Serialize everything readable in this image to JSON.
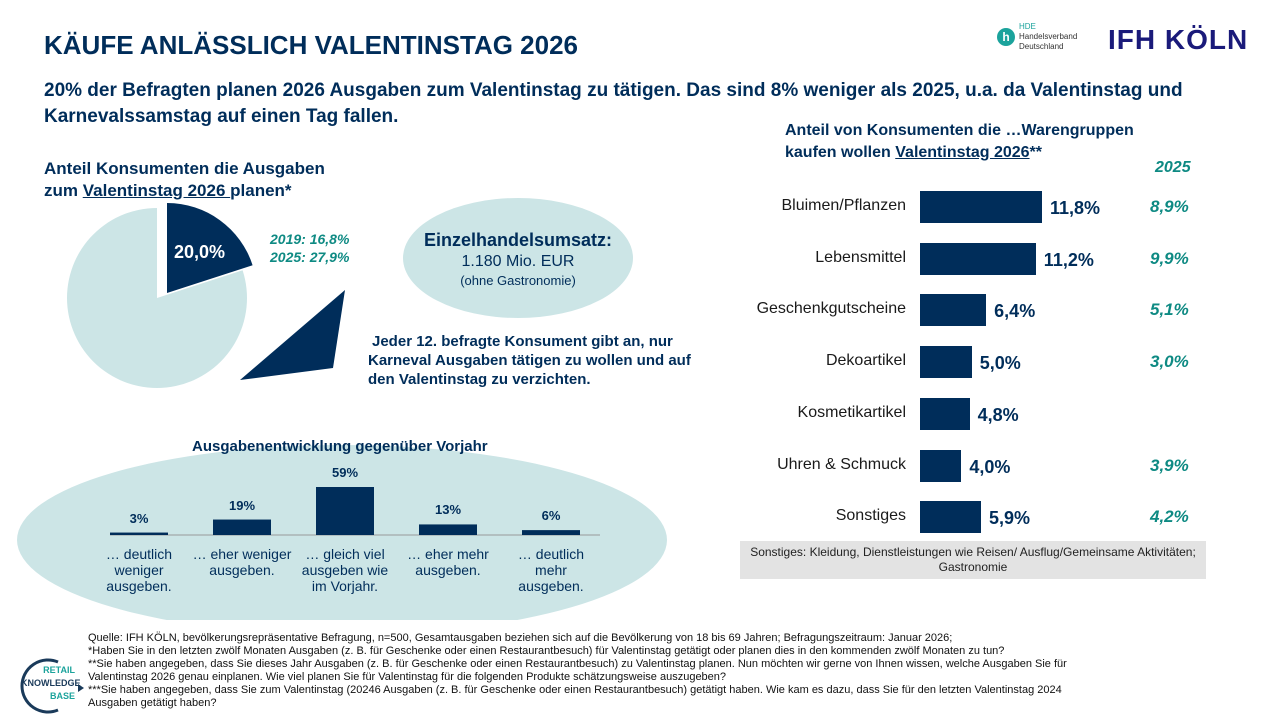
{
  "header": {
    "title": "KÄUFE ANLÄSSLICH VALENTINSTAG 2026",
    "subtitle": "20% der Befragten planen 2026 Ausgaben zum Valentinstag zu tätigen. Das sind 8% weniger als 2025, u.a. da Valentinstag und Karnevalssamstag auf einen Tag fallen.",
    "logos": {
      "hde": "HDE Handelsverband Deutschland",
      "ifh": "IFH KÖLN",
      "rkb": "RETAIL KNOWLEDGE BASE"
    }
  },
  "pie": {
    "heading_1": "Anteil Konsumenten die Ausgaben",
    "heading_2a": "zum ",
    "heading_2u": "Valentinstag 2026 ",
    "heading_2b": "planen*",
    "value_label": "20,0%",
    "value": 20.0,
    "compare_1": "2019: 16,8%",
    "compare_2": "2025: 27,9%",
    "colors": {
      "slice": "#002D5A",
      "rest": "#CCE5E6"
    }
  },
  "revenue": {
    "title": "Einzelhandelsumsatz:",
    "value": "1.180 Mio. EUR",
    "note": "(ohne Gastronomie)"
  },
  "karneval_note": "Jeder 12. befragte Konsument gibt an, nur Karneval Ausgaben tätigen zu wollen und auf den Valentinstag zu verzichten.",
  "chart_data": [
    {
      "type": "bar",
      "title": "Ausgabenentwicklung gegenüber Vorjahr",
      "categories": [
        "… deutlich weniger ausgeben.",
        "… eher weniger ausgeben.",
        "… gleich viel ausgeben wie im Vorjahr.",
        "… eher mehr ausgeben.",
        "… deutlich mehr ausgeben."
      ],
      "values": [
        3,
        19,
        59,
        13,
        6
      ],
      "value_labels": [
        "3%",
        "19%",
        "59%",
        "13%",
        "6%"
      ]
    },
    {
      "type": "bar",
      "orientation": "horizontal",
      "title_1": "Anteil von Konsumenten die …Warengruppen",
      "title_2a": "kaufen wollen ",
      "title_2u": "Valentinstag 2026",
      "title_2b": "**",
      "categories": [
        "Bluimen/Pflanzen",
        "Lebensmittel",
        "Geschenkgutscheine",
        "Dekoartikel",
        "Kosmetikartikel",
        "Uhren & Schmuck",
        "Sonstiges"
      ],
      "values": [
        11.8,
        11.2,
        6.4,
        5.0,
        4.8,
        4.0,
        5.9
      ],
      "value_labels": [
        "11,8%",
        "11,2%",
        "6,4%",
        "5,0%",
        "4,8%",
        "4,0%",
        "5,9%"
      ],
      "compare_header": "2025",
      "compare_labels": [
        "8,9%",
        "9,9%",
        "5,1%",
        "3,0%",
        "",
        "3,9%",
        "4,2%"
      ],
      "note": "Sonstiges: Kleidung, Dienstleistungen wie Reisen/ Ausflug/Gemeinsame Aktivitäten; Gastronomie"
    }
  ],
  "footnotes": [
    "Quelle: IFH KÖLN, bevölkerungsrepräsentative Befragung, n=500, Gesamtausgaben beziehen sich auf die Bevölkerung von 18 bis 69 Jahren; Befragungszeitraum: Januar 2026;",
    "*Haben Sie in den letzten zwölf Monaten Ausgaben (z. B. für Geschenke oder einen Restaurantbesuch) für Valentinstag getätigt oder planen dies in den kommenden zwölf Monaten zu tun?",
    "**Sie haben angegeben, dass Sie dieses Jahr Ausgaben (z. B. für Geschenke oder einen Restaurantbesuch) zu Valentinstag planen. Nun möchten wir gerne von Ihnen wissen, welche Ausgaben Sie für Valentinstag 2026 genau einplanen. Wie viel planen Sie für Valentinstag für die folgenden Produkte schätzungsweise auszugeben?",
    "***Sie haben angegeben, dass Sie zum Valentinstag (20246 Ausgaben (z. B. für Geschenke oder einen Restaurantbesuch) getätigt haben. Wie kam es dazu, dass Sie für den letzten Valentinstag 2024 Ausgaben getätigt haben?"
  ]
}
